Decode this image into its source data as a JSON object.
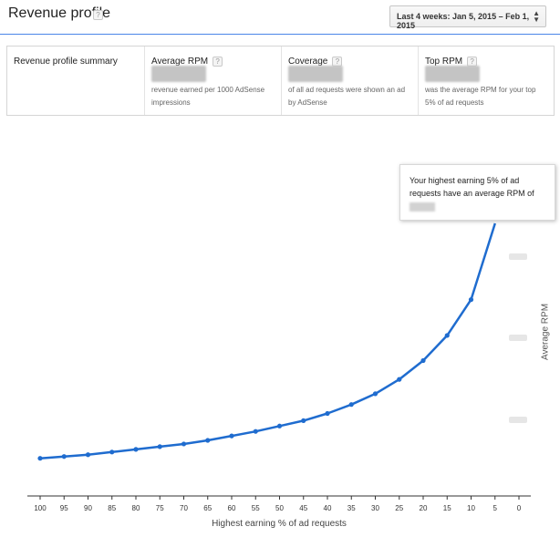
{
  "header": {
    "title": "Revenue profile",
    "help": "?",
    "date_range": "Last 4 weeks: Jan 5, 2015 – Feb 1, 2015",
    "date_arrow_up": "▲",
    "date_arrow_down": "▼"
  },
  "summary": {
    "label": "Revenue profile summary",
    "metrics": [
      {
        "name": "Average RPM",
        "description": [
          "revenue earned per 1000 AdSense",
          "impressions"
        ]
      },
      {
        "name": "Coverage",
        "description": [
          "of all ad requests were shown an ad",
          "by AdSense"
        ]
      },
      {
        "name": "Top RPM",
        "description": [
          "was the average RPM for your top",
          "5% of ad requests"
        ]
      }
    ]
  },
  "tooltip": {
    "text": "Your highest earning 5% of ad requests have an average RPM of"
  },
  "chart_data": {
    "type": "line",
    "x": [
      100,
      95,
      90,
      85,
      80,
      75,
      70,
      65,
      60,
      55,
      50,
      45,
      40,
      35,
      30,
      25,
      20,
      15,
      10,
      5
    ],
    "x_ticks": [
      "100",
      "95",
      "90",
      "85",
      "80",
      "75",
      "70",
      "65",
      "60",
      "55",
      "50",
      "45",
      "40",
      "35",
      "30",
      "25",
      "20",
      "15",
      "10",
      "5",
      "0"
    ],
    "xlabel": "Highest earning % of ad requests",
    "ylabel": "Average RPM",
    "y_tick_labels_hidden": true,
    "series": [
      {
        "values": [
          0.21,
          0.22,
          0.23,
          0.245,
          0.26,
          0.275,
          0.29,
          0.31,
          0.335,
          0.36,
          0.39,
          0.42,
          0.46,
          0.51,
          0.57,
          0.65,
          0.755,
          0.895,
          1.095,
          1.52
        ]
      }
    ],
    "ylim": [
      0,
      1.52
    ],
    "color": "#1f6ccf",
    "grid": false
  }
}
